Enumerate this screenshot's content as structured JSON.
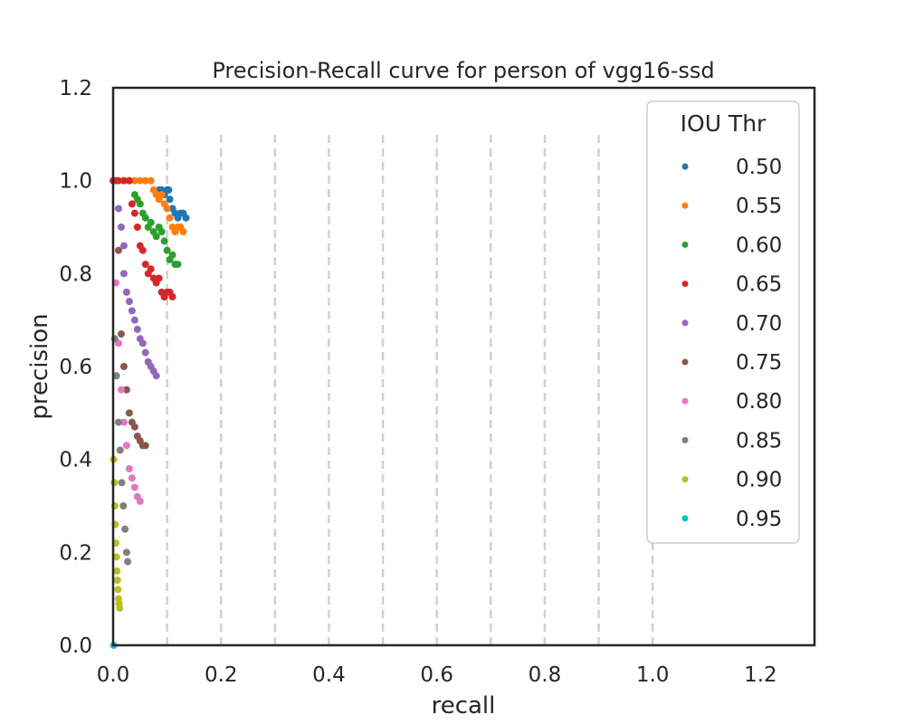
{
  "chart_data": {
    "type": "scatter",
    "title": "Precision-Recall curve for person of vgg16-ssd",
    "xlabel": "recall",
    "ylabel": "precision",
    "xlim": [
      0.0,
      1.3
    ],
    "ylim": [
      0.0,
      1.2
    ],
    "x_ticks": [
      "0.0",
      "0.2",
      "0.4",
      "0.6",
      "0.8",
      "1.0",
      "1.2"
    ],
    "y_ticks": [
      "0.0",
      "0.2",
      "0.4",
      "0.6",
      "0.8",
      "1.0",
      "1.2"
    ],
    "grid": "vertical dashed lines at recall 0.1 through 1.0, spanning precision 0 to 1.1",
    "legend": {
      "title": "IOU Thr",
      "placement": "upper-right"
    },
    "series": [
      {
        "name": "0.50",
        "color": "#1f77b4",
        "x": [
          0.085,
          0.09,
          0.095,
          0.1,
          0.103,
          0.105,
          0.11,
          0.115,
          0.12,
          0.125,
          0.13,
          0.135
        ],
        "y": [
          0.98,
          0.98,
          0.97,
          0.98,
          0.98,
          0.96,
          0.94,
          0.93,
          0.92,
          0.93,
          0.93,
          0.92
        ]
      },
      {
        "name": "0.55",
        "color": "#ff7f0e",
        "x": [
          0.02,
          0.03,
          0.04,
          0.05,
          0.06,
          0.07,
          0.075,
          0.08,
          0.085,
          0.09,
          0.095,
          0.1,
          0.105,
          0.11,
          0.115,
          0.12,
          0.125,
          0.13
        ],
        "y": [
          1.0,
          1.0,
          1.0,
          1.0,
          1.0,
          1.0,
          0.98,
          0.97,
          0.96,
          0.97,
          0.95,
          0.94,
          0.92,
          0.9,
          0.89,
          0.9,
          0.9,
          0.89
        ]
      },
      {
        "name": "0.60",
        "color": "#2ca02c",
        "x": [
          0.04,
          0.045,
          0.05,
          0.055,
          0.06,
          0.065,
          0.07,
          0.075,
          0.08,
          0.085,
          0.09,
          0.095,
          0.1,
          0.105,
          0.11,
          0.115,
          0.12
        ],
        "y": [
          0.97,
          0.96,
          0.95,
          0.93,
          0.92,
          0.9,
          0.91,
          0.89,
          0.88,
          0.9,
          0.89,
          0.87,
          0.85,
          0.83,
          0.84,
          0.82,
          0.82
        ]
      },
      {
        "name": "0.65",
        "color": "#d62728",
        "x": [
          0.0,
          0.005,
          0.01,
          0.02,
          0.03,
          0.035,
          0.04,
          0.045,
          0.05,
          0.055,
          0.06,
          0.065,
          0.07,
          0.075,
          0.08,
          0.085,
          0.09,
          0.095,
          0.1,
          0.105,
          0.11
        ],
        "y": [
          1.0,
          1.0,
          1.0,
          1.0,
          1.0,
          0.95,
          0.93,
          0.9,
          0.86,
          0.85,
          0.82,
          0.8,
          0.81,
          0.79,
          0.78,
          0.79,
          0.76,
          0.75,
          0.76,
          0.76,
          0.75
        ]
      },
      {
        "name": "0.70",
        "color": "#9467bd",
        "x": [
          0.01,
          0.015,
          0.02,
          0.02,
          0.025,
          0.03,
          0.035,
          0.04,
          0.045,
          0.05,
          0.055,
          0.06,
          0.065,
          0.07,
          0.075,
          0.08
        ],
        "y": [
          0.94,
          0.9,
          0.86,
          0.8,
          0.76,
          0.74,
          0.72,
          0.7,
          0.68,
          0.66,
          0.65,
          0.63,
          0.61,
          0.6,
          0.59,
          0.58
        ]
      },
      {
        "name": "0.75",
        "color": "#8c564b",
        "x": [
          0.01,
          0.015,
          0.02,
          0.025,
          0.03,
          0.035,
          0.04,
          0.045,
          0.05,
          0.055,
          0.06
        ],
        "y": [
          0.85,
          0.67,
          0.6,
          0.55,
          0.5,
          0.48,
          0.47,
          0.45,
          0.44,
          0.43,
          0.43
        ]
      },
      {
        "name": "0.80",
        "color": "#e377c2",
        "x": [
          0.005,
          0.01,
          0.015,
          0.02,
          0.025,
          0.03,
          0.035,
          0.04,
          0.045,
          0.05
        ],
        "y": [
          0.78,
          0.65,
          0.55,
          0.48,
          0.43,
          0.38,
          0.36,
          0.34,
          0.32,
          0.31
        ]
      },
      {
        "name": "0.85",
        "color": "#7f7f7f",
        "x": [
          0.003,
          0.006,
          0.01,
          0.013,
          0.016,
          0.019,
          0.022,
          0.025,
          0.027
        ],
        "y": [
          0.66,
          0.58,
          0.48,
          0.42,
          0.35,
          0.3,
          0.25,
          0.2,
          0.18
        ]
      },
      {
        "name": "0.90",
        "color": "#bcbd22",
        "x": [
          0.001,
          0.002,
          0.003,
          0.004,
          0.005,
          0.006,
          0.007,
          0.008,
          0.009,
          0.01,
          0.011,
          0.012
        ],
        "y": [
          0.4,
          0.35,
          0.3,
          0.26,
          0.22,
          0.19,
          0.16,
          0.14,
          0.12,
          0.1,
          0.09,
          0.08
        ]
      },
      {
        "name": "0.95",
        "color": "#17becf",
        "x": [
          0.001
        ],
        "y": [
          0.0
        ]
      }
    ]
  }
}
